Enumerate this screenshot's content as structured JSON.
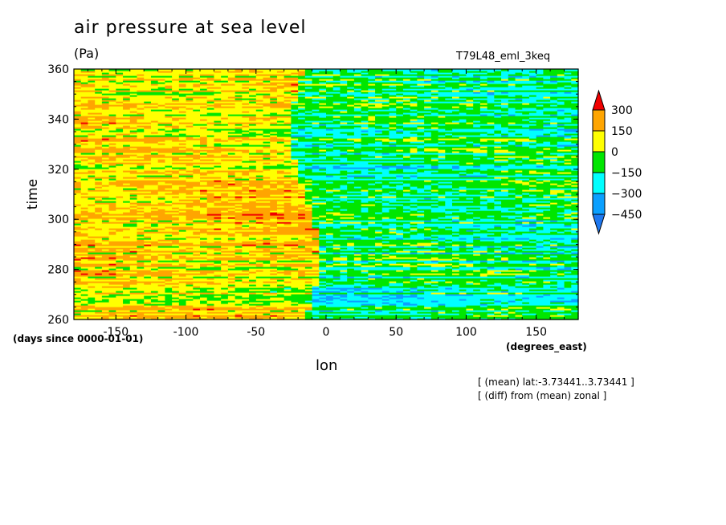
{
  "chart_data": {
    "type": "heatmap",
    "title": "air pressure at sea level",
    "units": "(Pa)",
    "experiment": "T79L48_eml_3keq",
    "xlabel": "lon",
    "ylabel": "time",
    "x_units": "(degrees_east)",
    "y_units": "(days since 0000-01-01)",
    "xlim": [
      -180,
      180
    ],
    "ylim": [
      260,
      360
    ],
    "x_ticks": [
      -150,
      -100,
      -50,
      0,
      50,
      100,
      150
    ],
    "y_ticks": [
      260,
      280,
      300,
      320,
      340,
      360
    ],
    "colorbar": {
      "levels": [
        -450,
        -300,
        -150,
        0,
        150,
        300
      ],
      "labels": [
        "300",
        "150",
        "0",
        "−150",
        "−300",
        "−450"
      ],
      "colors": [
        "#1e78f0",
        "#0aa0ff",
        "#00ffff",
        "#00e600",
        "#ffff00",
        "#ffa500",
        "#f00000"
      ]
    },
    "notes": [
      "[ (mean) lat:-3.73441..3.73441 ]",
      "[ (diff) from (mean) zonal ]"
    ]
  }
}
